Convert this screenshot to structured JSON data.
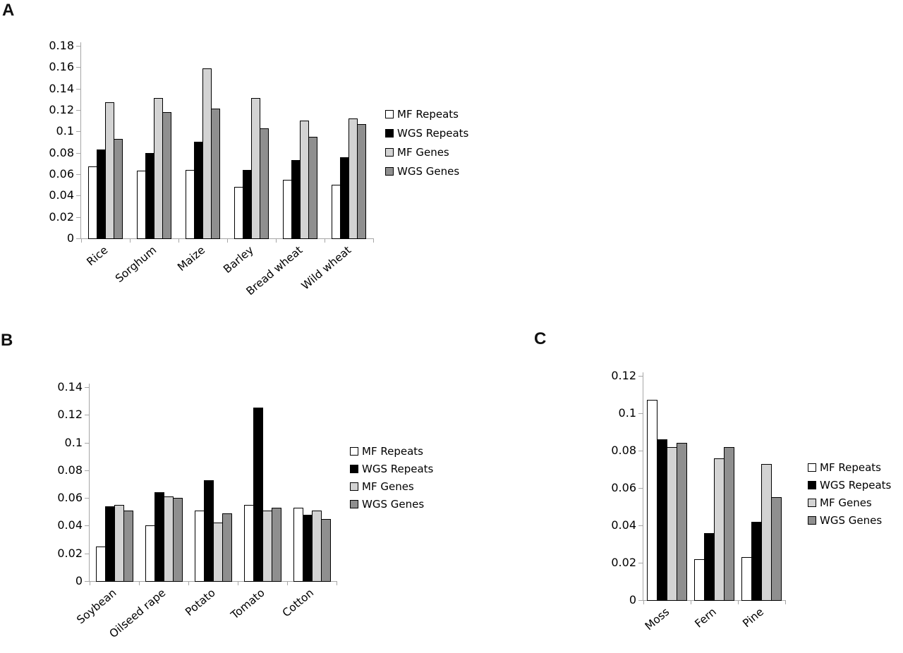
{
  "figure": {
    "background": "#ffffff",
    "axis_color": "#a6a6a6"
  },
  "chart_data": [
    {
      "panel_label": "A",
      "type": "bar",
      "categories": [
        "Rice",
        "Sorghum",
        "Maize",
        "Barley",
        "Bread wheat",
        "Wild wheat"
      ],
      "series": [
        {
          "name": "MF Repeats",
          "color": "#ffffff",
          "values": [
            0.067,
            0.063,
            0.064,
            0.048,
            0.055,
            0.05
          ]
        },
        {
          "name": "WGS Repeats",
          "color": "#000000",
          "values": [
            0.083,
            0.08,
            0.09,
            0.064,
            0.073,
            0.076
          ]
        },
        {
          "name": "MF Genes",
          "color": "#d3d3d3",
          "values": [
            0.127,
            0.131,
            0.159,
            0.131,
            0.11,
            0.112
          ]
        },
        {
          "name": "WGS Genes",
          "color": "#8f8f8f",
          "values": [
            0.093,
            0.118,
            0.121,
            0.103,
            0.095,
            0.107
          ]
        }
      ],
      "title": "",
      "xlabel": "",
      "ylabel": "",
      "ylim": [
        0,
        0.18
      ],
      "ytick_step": 0.02,
      "yticks": [
        "0.18",
        "0.16",
        "0.14",
        "0.12",
        "0.1",
        "0.08",
        "0.06",
        "0.04",
        "0.02",
        "0"
      ],
      "grid": false,
      "legend_position": "right"
    },
    {
      "panel_label": "B",
      "type": "bar",
      "categories": [
        "Soybean",
        "Oilseed rape",
        "Potato",
        "Tomato",
        "Cotton"
      ],
      "series": [
        {
          "name": "MF Repeats",
          "color": "#ffffff",
          "values": [
            0.025,
            0.04,
            0.051,
            0.055,
            0.053
          ]
        },
        {
          "name": "WGS Repeats",
          "color": "#000000",
          "values": [
            0.054,
            0.064,
            0.073,
            0.125,
            0.048
          ]
        },
        {
          "name": "MF Genes",
          "color": "#d3d3d3",
          "values": [
            0.055,
            0.061,
            0.042,
            0.051,
            0.051
          ]
        },
        {
          "name": "WGS Genes",
          "color": "#8f8f8f",
          "values": [
            0.051,
            0.06,
            0.049,
            0.053,
            0.045
          ]
        }
      ],
      "title": "",
      "xlabel": "",
      "ylabel": "",
      "ylim": [
        0,
        0.14
      ],
      "ytick_step": 0.02,
      "yticks": [
        "0.14",
        "0.12",
        "0.1",
        "0.08",
        "0.06",
        "0.04",
        "0.02",
        "0"
      ],
      "grid": false,
      "legend_position": "right"
    },
    {
      "panel_label": "C",
      "type": "bar",
      "categories": [
        "Moss",
        "Fern",
        "Pine"
      ],
      "series": [
        {
          "name": "MF Repeats",
          "color": "#ffffff",
          "values": [
            0.107,
            0.022,
            0.023
          ]
        },
        {
          "name": "WGS Repeats",
          "color": "#000000",
          "values": [
            0.086,
            0.036,
            0.042
          ]
        },
        {
          "name": "MF Genes",
          "color": "#d3d3d3",
          "values": [
            0.082,
            0.076,
            0.073
          ]
        },
        {
          "name": "WGS Genes",
          "color": "#8f8f8f",
          "values": [
            0.084,
            0.082,
            0.055
          ]
        }
      ],
      "title": "",
      "xlabel": "",
      "ylabel": "",
      "ylim": [
        0,
        0.12
      ],
      "ytick_step": 0.02,
      "yticks": [
        "0.12",
        "0.1",
        "0.08",
        "0.06",
        "0.04",
        "0.02",
        "0"
      ],
      "grid": false,
      "legend_position": "right"
    }
  ]
}
